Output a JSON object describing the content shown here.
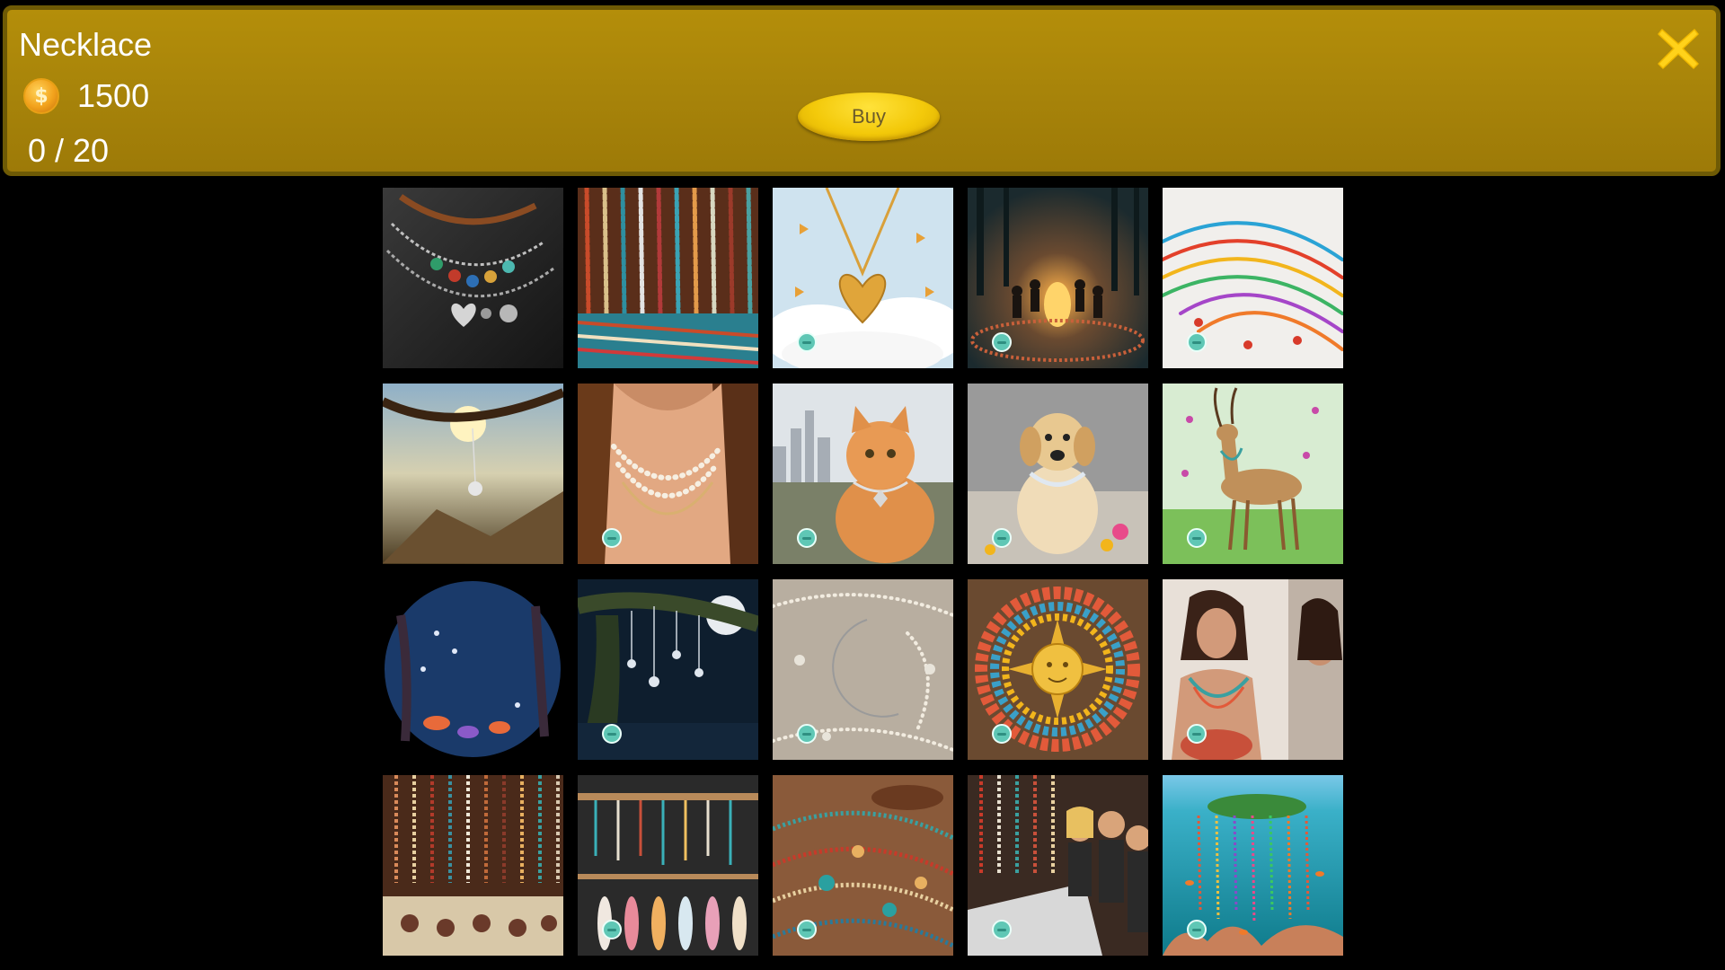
{
  "shop": {
    "title": "Necklace",
    "price": "1500",
    "progress": "0 / 20",
    "buy_label": "Buy",
    "coin_icon": "coin-icon",
    "close_icon": "close-x-icon",
    "accent_color": "#a9850a",
    "buy_color": "#f3c90a"
  },
  "items": [
    {
      "id": "leather-silver-necklaces",
      "badge": false
    },
    {
      "id": "bead-necklace-stall",
      "badge": false
    },
    {
      "id": "gold-heart-clouds",
      "badge": true
    },
    {
      "id": "forest-fire-dance",
      "badge": true
    },
    {
      "id": "colorful-string-necklaces",
      "badge": true
    },
    {
      "id": "pendant-on-branch-sunset",
      "badge": false
    },
    {
      "id": "pearl-choker-neck",
      "badge": true
    },
    {
      "id": "cat-with-necklace",
      "badge": true
    },
    {
      "id": "dog-with-necklace",
      "badge": true
    },
    {
      "id": "gazelle-with-necklace",
      "badge": true
    },
    {
      "id": "moon-mushroom-forest",
      "badge": false
    },
    {
      "id": "moonlit-tree-pendants",
      "badge": true
    },
    {
      "id": "silver-crescent-moon",
      "badge": true
    },
    {
      "id": "sun-face-beads",
      "badge": true
    },
    {
      "id": "woman-mirror-necklace",
      "badge": true
    },
    {
      "id": "market-wall-necklaces",
      "badge": false
    },
    {
      "id": "feather-necklace-rack",
      "badge": true
    },
    {
      "id": "bead-pile-table",
      "badge": true
    },
    {
      "id": "market-shoppers",
      "badge": true
    },
    {
      "id": "underwater-island-necklaces",
      "badge": true
    }
  ]
}
